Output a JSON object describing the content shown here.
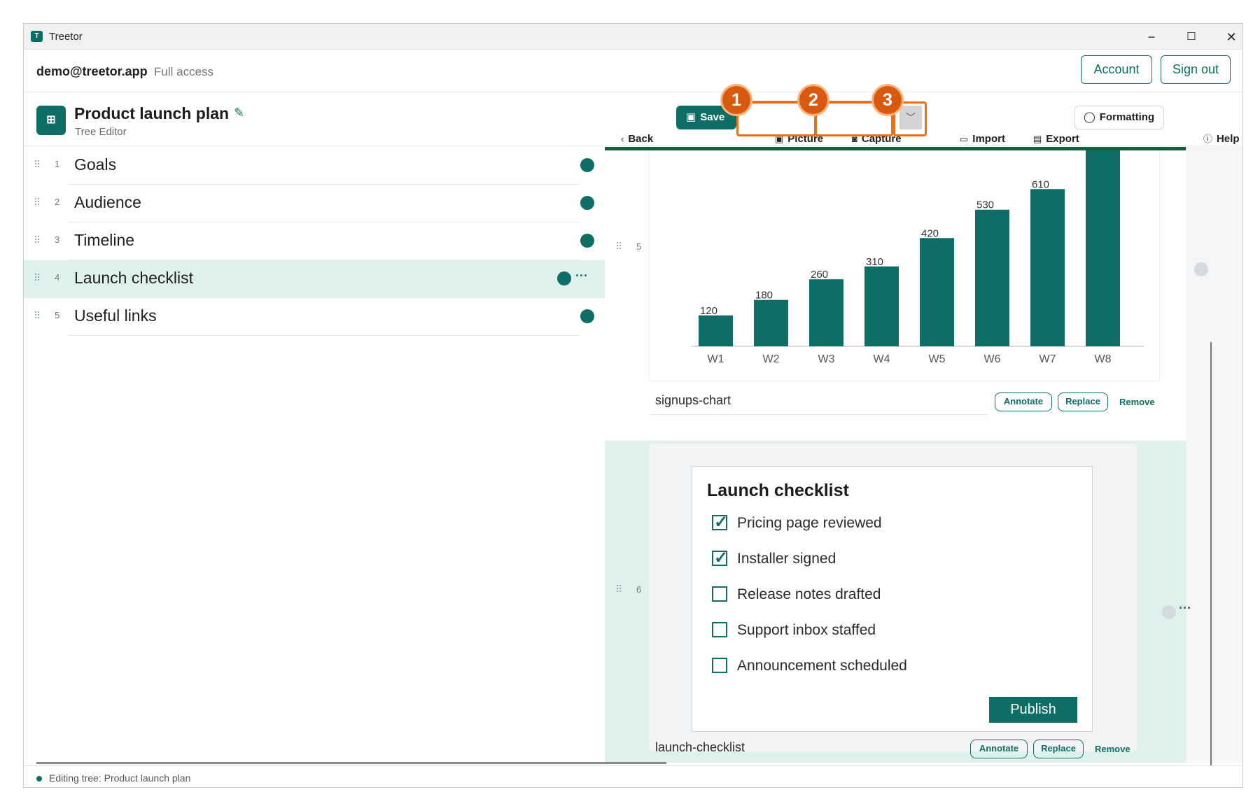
{
  "window": {
    "title": "Treetor",
    "minimize": "−",
    "maximize": "☐",
    "close": "✕"
  },
  "user": {
    "email": "demo@treetor.app",
    "access": "Full access"
  },
  "topbar": {
    "account_label": "Account",
    "signout_label": "Sign out"
  },
  "document": {
    "title": "Product launch plan",
    "subtitle": "Tree Editor"
  },
  "toolbar": {
    "back_label": "Back",
    "save_label": "Save",
    "picture_label": "Picture",
    "capture_label": "Capture",
    "import_label": "Import",
    "export_label": "Export",
    "formatting_label": "Formatting",
    "help_label": "Help"
  },
  "annotations": {
    "badge1": "1",
    "badge2": "2",
    "badge3": "3",
    "accent": "#e8701a"
  },
  "tree": {
    "items": [
      {
        "num": "1",
        "label": "Goals"
      },
      {
        "num": "2",
        "label": "Audience"
      },
      {
        "num": "3",
        "label": "Timeline"
      },
      {
        "num": "4",
        "label": "Launch checklist"
      },
      {
        "num": "5",
        "label": "Useful links"
      }
    ],
    "selected_index": 4,
    "more_label": "···"
  },
  "content": {
    "item5": {
      "num": "5",
      "caption": "signups-chart",
      "annotate": "Annotate",
      "replace": "Replace",
      "remove": "Remove"
    },
    "item6": {
      "num": "6",
      "caption": "launch-checklist",
      "annotate": "Annotate",
      "replace": "Replace",
      "remove": "Remove",
      "more": "···"
    }
  },
  "chart_data": {
    "type": "bar",
    "categories": [
      "W1",
      "W2",
      "W3",
      "W4",
      "W5",
      "W6",
      "W7",
      "W8"
    ],
    "values": [
      120,
      180,
      260,
      310,
      420,
      530,
      610,
      760
    ],
    "labels": [
      "120",
      "180",
      "260",
      "310",
      "420",
      "530",
      "610",
      ""
    ],
    "color": "#0e6e66",
    "ylim": [
      0,
      760
    ]
  },
  "checklist": {
    "title": "Launch checklist",
    "items": [
      {
        "label": "Pricing page reviewed",
        "checked": true
      },
      {
        "label": "Installer signed",
        "checked": true
      },
      {
        "label": "Release notes drafted",
        "checked": false
      },
      {
        "label": "Support inbox staffed",
        "checked": false
      },
      {
        "label": "Announcement scheduled",
        "checked": false
      }
    ],
    "publish_label": "Publish"
  },
  "status": {
    "text": "Editing tree: Product launch plan"
  },
  "colors": {
    "brand": "#0e6e66",
    "selected_bg": "#dff1ed"
  }
}
